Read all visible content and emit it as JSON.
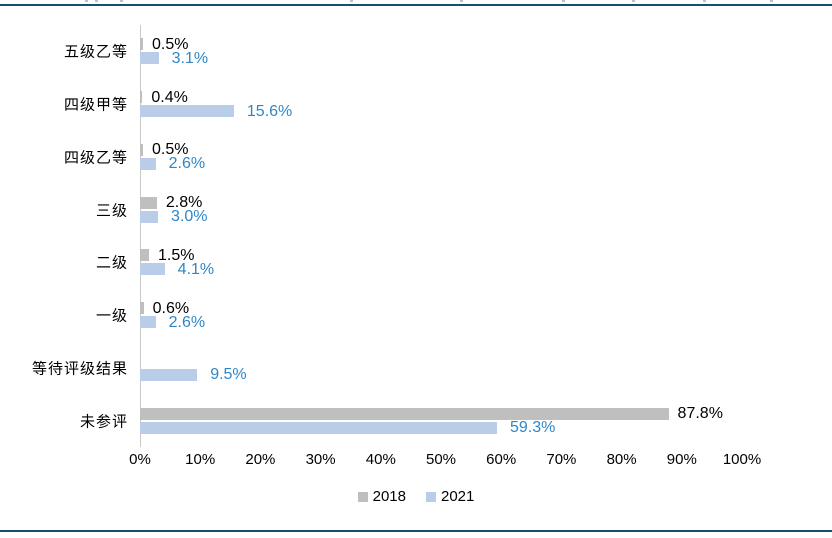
{
  "page": {
    "background": "#FFFFFF",
    "top_rule_color": "#14506E",
    "bottom_rule_color": "#14506E"
  },
  "chart_data": {
    "type": "bar",
    "orientation": "horizontal",
    "title": "",
    "xlabel": "",
    "ylabel": "",
    "categories": [
      "五级乙等",
      "四级甲等",
      "四级乙等",
      "三级",
      "二级",
      "一级",
      "等待评级结果",
      "未参评"
    ],
    "series": [
      {
        "name": "2018",
        "color": "#BFBFBF",
        "label_color": "#000000",
        "values": [
          0.5,
          0.4,
          0.5,
          2.8,
          1.5,
          0.6,
          null,
          87.8
        ],
        "labels": [
          "0.5%",
          "0.4%",
          "0.5%",
          "2.8%",
          "1.5%",
          "0.6%",
          null,
          "87.8%"
        ]
      },
      {
        "name": "2021",
        "color": "#B9CCE8",
        "label_color": "#2E86C8",
        "values": [
          3.1,
          15.6,
          2.6,
          3.0,
          4.1,
          2.6,
          9.5,
          59.3
        ],
        "labels": [
          "3.1%",
          "15.6%",
          "2.6%",
          "3.0%",
          "4.1%",
          "2.6%",
          "9.5%",
          "59.3%"
        ]
      }
    ],
    "x_ticks": [
      "0%",
      "10%",
      "20%",
      "30%",
      "40%",
      "50%",
      "60%",
      "70%",
      "80%",
      "90%",
      "100%"
    ],
    "xlim": [
      0,
      100
    ],
    "grid": false,
    "axis_line_color": "#C9C9C9",
    "legend_position": "bottom",
    "legend": [
      "2018",
      "2021"
    ]
  }
}
